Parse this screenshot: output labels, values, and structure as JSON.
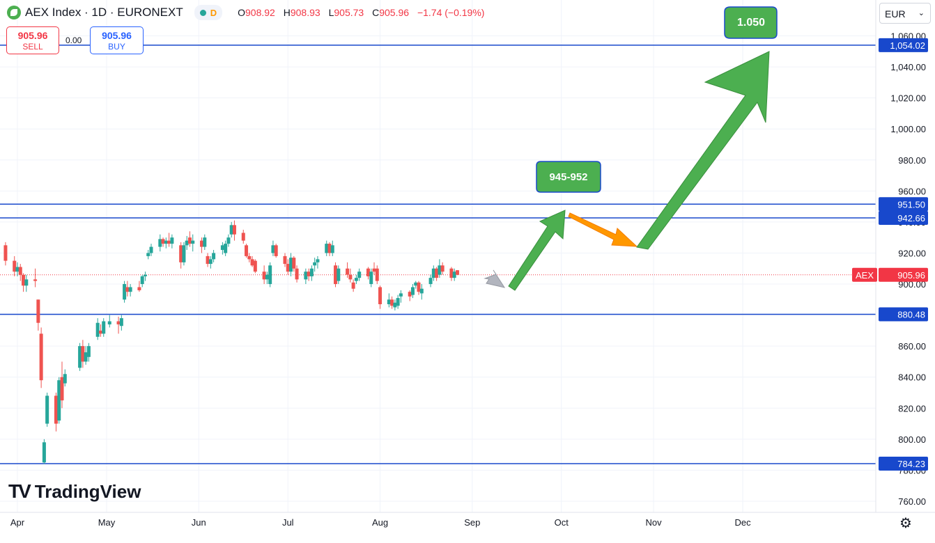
{
  "header": {
    "symbol": "AEX Index · 1D · EURONEXT",
    "interval_badge": "D",
    "ohlc": {
      "o_label": "O",
      "o": "908.92",
      "h_label": "H",
      "h": "908.93",
      "l_label": "L",
      "l": "905.73",
      "c_label": "C",
      "c": "905.96",
      "change": "−1.74 (−0.19%)"
    }
  },
  "trade": {
    "sell_price": "905.96",
    "sell_label": "SELL",
    "spread": "0.00",
    "buy_price": "905.96",
    "buy_label": "BUY"
  },
  "currency": "EUR",
  "branding": "TradingView",
  "colors": {
    "up": "#26a69a",
    "down": "#ef5350",
    "level_line": "#1848cc",
    "green_arrow": "#4caf50",
    "orange_arrow": "#ff9800",
    "gray_arrow": "#b2b5be",
    "price_label": "#f23645"
  },
  "chart_data": {
    "type": "candlestick",
    "symbol": "AEX",
    "last_price": 905.96,
    "last_price_label": "905.96",
    "ylim": [
      755,
      1075
    ],
    "y_ticks": [
      "760.00",
      "780.00",
      "800.00",
      "820.00",
      "840.00",
      "860.00",
      "880.00",
      "900.00",
      "920.00",
      "940.00",
      "960.00",
      "980.00",
      "1,000.00",
      "1,020.00",
      "1,040.00",
      "1,060.00"
    ],
    "x_ticks": [
      {
        "label": "Apr",
        "date": "2025-04-01"
      },
      {
        "label": "May",
        "date": "2025-05-01"
      },
      {
        "label": "Jun",
        "date": "2025-06-01"
      },
      {
        "label": "Jul",
        "date": "2025-07-01"
      },
      {
        "label": "Aug",
        "date": "2025-08-01"
      },
      {
        "label": "Sep",
        "date": "2025-09-01"
      },
      {
        "label": "Oct",
        "date": "2025-10-01"
      },
      {
        "label": "Nov",
        "date": "2025-11-01"
      },
      {
        "label": "Dec",
        "date": "2025-12-01"
      }
    ],
    "levels": [
      {
        "value": 1054.02,
        "label": "1,054.02"
      },
      {
        "value": 951.5,
        "label": "951.50"
      },
      {
        "value": 942.66,
        "label": "942.66"
      },
      {
        "value": 880.48,
        "label": "880.48"
      },
      {
        "value": 784.23,
        "label": "784.23"
      }
    ],
    "candles": [
      [
        "2025-03-28",
        925,
        927,
        912,
        915
      ],
      [
        "2025-03-31",
        915,
        918,
        905,
        908
      ],
      [
        "2025-04-01",
        908,
        914,
        905,
        911
      ],
      [
        "2025-04-02",
        911,
        913,
        902,
        906
      ],
      [
        "2025-04-03",
        906,
        907,
        895,
        899
      ],
      [
        "2025-04-04",
        899,
        906,
        895,
        903
      ],
      [
        "2025-04-07",
        903,
        910,
        898,
        902
      ],
      [
        "2025-04-08",
        890,
        890,
        870,
        875
      ],
      [
        "2025-04-09",
        868,
        872,
        833,
        838
      ],
      [
        "2025-04-10",
        785,
        800,
        784,
        798
      ],
      [
        "2025-04-11",
        810,
        830,
        808,
        828
      ],
      [
        "2025-04-14",
        828,
        830,
        805,
        810
      ],
      [
        "2025-04-15",
        812,
        840,
        810,
        838
      ],
      [
        "2025-04-16",
        840,
        850,
        820,
        825
      ],
      [
        "2025-04-17",
        836,
        845,
        834,
        842
      ],
      [
        "2025-04-22",
        846,
        862,
        844,
        860
      ],
      [
        "2025-04-23",
        860,
        864,
        846,
        850
      ],
      [
        "2025-04-24",
        850,
        860,
        848,
        856
      ],
      [
        "2025-04-25",
        853,
        862,
        850,
        860
      ],
      [
        "2025-04-28",
        866,
        878,
        864,
        875
      ],
      [
        "2025-04-29",
        870,
        874,
        866,
        868
      ],
      [
        "2025-04-30",
        868,
        878,
        866,
        876
      ],
      [
        "2025-05-02",
        874,
        880,
        872,
        876
      ],
      [
        "2025-05-05",
        876,
        879,
        868,
        874
      ],
      [
        "2025-05-06",
        873,
        880,
        870,
        878
      ],
      [
        "2025-05-07",
        890,
        902,
        888,
        900
      ],
      [
        "2025-05-08",
        898,
        902,
        892,
        895
      ],
      [
        "2025-05-09",
        895,
        900,
        892,
        898
      ],
      [
        "2025-05-12",
        898,
        902,
        895,
        896
      ],
      [
        "2025-05-13",
        900,
        906,
        898,
        905
      ],
      [
        "2025-05-14",
        905,
        908,
        902,
        906
      ],
      [
        "2025-05-15",
        918,
        922,
        916,
        920
      ],
      [
        "2025-05-16",
        920,
        926,
        918,
        924
      ],
      [
        "2025-05-19",
        924,
        932,
        921,
        929
      ],
      [
        "2025-05-20",
        929,
        930,
        924,
        926
      ],
      [
        "2025-05-21",
        926,
        930,
        923,
        928
      ],
      [
        "2025-05-22",
        928,
        933,
        924,
        926
      ],
      [
        "2025-05-23",
        926,
        932,
        923,
        930
      ],
      [
        "2025-05-26",
        925,
        927,
        910,
        914
      ],
      [
        "2025-05-27",
        914,
        927,
        912,
        925
      ],
      [
        "2025-05-28",
        925,
        931,
        922,
        928
      ],
      [
        "2025-05-29",
        930,
        934,
        924,
        926
      ],
      [
        "2025-05-30",
        926,
        932,
        921,
        928
      ],
      [
        "2025-06-02",
        928,
        930,
        920,
        924
      ],
      [
        "2025-06-03",
        924,
        932,
        922,
        930
      ],
      [
        "2025-06-04",
        918,
        920,
        911,
        913
      ],
      [
        "2025-06-05",
        913,
        918,
        910,
        916
      ],
      [
        "2025-06-06",
        916,
        922,
        914,
        920
      ],
      [
        "2025-06-09",
        922,
        927,
        919,
        925
      ],
      [
        "2025-06-10",
        920,
        928,
        918,
        926
      ],
      [
        "2025-06-11",
        926,
        932,
        924,
        930
      ],
      [
        "2025-06-12",
        932,
        940,
        930,
        938
      ],
      [
        "2025-06-13",
        938,
        941,
        928,
        932
      ],
      [
        "2025-06-16",
        933,
        935,
        926,
        928
      ],
      [
        "2025-06-17",
        925,
        926,
        917,
        918
      ],
      [
        "2025-06-18",
        918,
        920,
        914,
        916
      ],
      [
        "2025-06-19",
        916,
        918,
        911,
        912
      ],
      [
        "2025-06-20",
        915,
        916,
        907,
        908
      ],
      [
        "2025-06-23",
        908,
        912,
        900,
        903
      ],
      [
        "2025-06-24",
        903,
        908,
        900,
        906
      ],
      [
        "2025-06-25",
        900,
        914,
        898,
        912
      ],
      [
        "2025-06-26",
        920,
        928,
        918,
        925
      ],
      [
        "2025-06-27",
        925,
        926,
        917,
        918
      ],
      [
        "2025-06-30",
        918,
        920,
        911,
        913
      ],
      [
        "2025-07-01",
        913,
        916,
        906,
        908
      ],
      [
        "2025-07-02",
        908,
        920,
        905,
        917
      ],
      [
        "2025-07-03",
        917,
        918,
        908,
        910
      ],
      [
        "2025-07-04",
        910,
        912,
        901,
        903
      ],
      [
        "2025-07-07",
        903,
        910,
        900,
        908
      ],
      [
        "2025-07-08",
        908,
        910,
        902,
        905
      ],
      [
        "2025-07-09",
        905,
        912,
        902,
        910
      ],
      [
        "2025-07-10",
        912,
        917,
        908,
        914
      ],
      [
        "2025-07-11",
        914,
        918,
        910,
        916
      ],
      [
        "2025-07-14",
        920,
        928,
        918,
        926
      ],
      [
        "2025-07-15",
        926,
        927,
        918,
        920
      ],
      [
        "2025-07-16",
        920,
        928,
        918,
        925
      ],
      [
        "2025-07-17",
        912,
        914,
        898,
        900
      ],
      [
        "2025-07-18",
        902,
        912,
        900,
        910
      ],
      [
        "2025-07-21",
        910,
        914,
        904,
        906
      ],
      [
        "2025-07-22",
        906,
        910,
        901,
        903
      ],
      [
        "2025-07-23",
        901,
        903,
        895,
        897
      ],
      [
        "2025-07-24",
        902,
        906,
        900,
        904
      ],
      [
        "2025-07-25",
        904,
        910,
        902,
        908
      ],
      [
        "2025-07-28",
        910,
        911,
        903,
        905
      ],
      [
        "2025-07-29",
        900,
        910,
        898,
        908
      ],
      [
        "2025-07-30",
        910,
        914,
        906,
        908
      ],
      [
        "2025-07-31",
        910,
        912,
        900,
        902
      ],
      [
        "2025-08-01",
        898,
        899,
        884,
        887
      ],
      [
        "2025-08-04",
        887,
        894,
        885,
        890
      ],
      [
        "2025-08-05",
        890,
        892,
        884,
        886
      ],
      [
        "2025-08-06",
        885,
        890,
        883,
        888
      ],
      [
        "2025-08-07",
        886,
        893,
        884,
        891
      ],
      [
        "2025-08-08",
        892,
        896,
        888,
        894
      ],
      [
        "2025-08-11",
        895,
        896,
        889,
        892
      ],
      [
        "2025-08-12",
        893,
        900,
        891,
        898
      ],
      [
        "2025-08-13",
        899,
        902,
        897,
        901
      ],
      [
        "2025-08-14",
        901,
        902,
        893,
        895
      ],
      [
        "2025-08-15",
        894,
        900,
        890,
        897
      ],
      [
        "2025-08-18",
        900,
        906,
        898,
        904
      ],
      [
        "2025-08-19",
        904,
        912,
        902,
        910
      ],
      [
        "2025-08-20",
        910,
        911,
        902,
        904
      ],
      [
        "2025-08-21",
        906,
        916,
        904,
        912
      ],
      [
        "2025-08-22",
        912,
        914,
        906,
        908
      ],
      [
        "2025-08-25",
        910,
        911,
        902,
        904
      ],
      [
        "2025-08-26",
        904,
        910,
        902,
        908
      ],
      [
        "2025-08-27",
        908.92,
        908.93,
        905.73,
        905.96
      ]
    ],
    "annotations": [
      {
        "label": "945-952",
        "type": "target"
      },
      {
        "label": "1.050",
        "type": "target"
      }
    ]
  }
}
